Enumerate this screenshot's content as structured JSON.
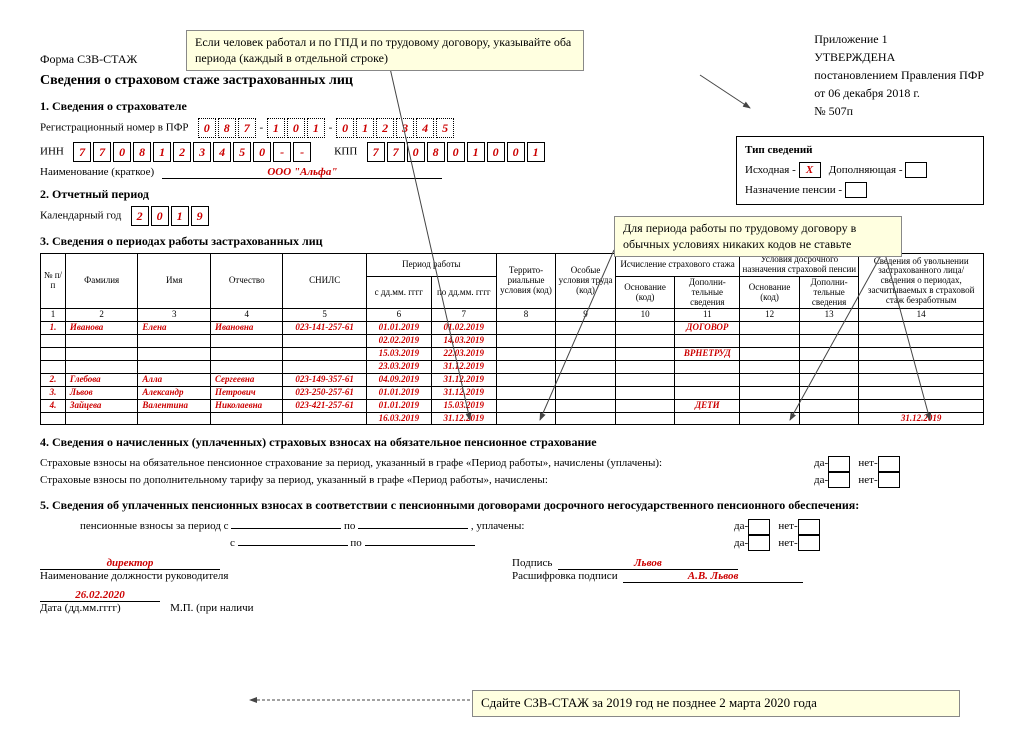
{
  "form_code": "Форма СЗВ-СТАЖ",
  "title": "Сведения о страховом стаже застрахованных лиц",
  "appendix": {
    "l1": "Приложение 1",
    "l2": "УТВЕРЖДЕНА",
    "l3": "постановлением Правления ПФР",
    "l4": "от   06 декабря 2018 г.",
    "l5": "№   507п"
  },
  "callout1": "Если человек работал и по ГПД и по трудовому договору, указывайте оба периода (каждый в отдельной строке)",
  "callout2": "Для периода работы по трудовому договору в обычных условиях никаких кодов не ставьте",
  "callout3": "Сдайте СЗВ-СТАЖ за 2019 год не позднее 2 марта 2020 года",
  "s1": {
    "h": "1. Сведения о страхователе",
    "reg_lbl": "Регистрационный номер в ПФР",
    "reg_g1": [
      "0",
      "8",
      "7"
    ],
    "reg_g2": [
      "1",
      "0",
      "1"
    ],
    "reg_g3": [
      "0",
      "1",
      "2",
      "3",
      "4",
      "5"
    ],
    "inn_lbl": "ИНН",
    "inn": [
      "7",
      "7",
      "0",
      "8",
      "1",
      "2",
      "3",
      "4",
      "5",
      "0",
      "-",
      "-"
    ],
    "kpp_lbl": "КПП",
    "kpp": [
      "7",
      "7",
      "0",
      "8",
      "0",
      "1",
      "0",
      "0",
      "1"
    ],
    "name_lbl": "Наименование (краткое)",
    "name_val": "ООО \"Альфа\""
  },
  "tinfo": {
    "h": "Тип сведений",
    "l1a": "Исходная -",
    "l1b": "X",
    "l1c": "Дополняющая -",
    "l2": "Назначение пенсии -"
  },
  "s2": {
    "h": "2. Отчетный период",
    "lbl": "Календарный год",
    "year": [
      "2",
      "0",
      "1",
      "9"
    ]
  },
  "s3": {
    "h": "3. Сведения о периодах работы застрахованных лиц",
    "cols": {
      "c1": "№ п/п",
      "c2": "Фамилия",
      "c3": "Имя",
      "c4": "Отчество",
      "c5": "СНИЛС",
      "c6": "Период работы",
      "c6a": "с дд.мм. гггг",
      "c6b": "по дд.мм. гггг",
      "c8": "Террито-риальные условия (код)",
      "c9": "Особые условия труда (код)",
      "c10": "Исчисление страхового стажа",
      "c10a": "Основание (код)",
      "c10b": "Дополни-тельные сведения",
      "c12": "Условия досрочного назначения страховой пенсии",
      "c12a": "Основание (код)",
      "c12b": "Дополни-тельные сведения",
      "c14": "Сведения об увольнении застрахованного лица/сведения о периодах, засчитываемых в страховой стаж безработным"
    },
    "nums": [
      "1",
      "2",
      "3",
      "4",
      "5",
      "6",
      "7",
      "8",
      "9",
      "10",
      "11",
      "12",
      "13",
      "14"
    ],
    "rows": [
      {
        "n": "1.",
        "fam": "Иванова",
        "im": "Елена",
        "ot": "Ивановна",
        "snils": "023-141-257-61",
        "from": "01.01.2019",
        "to": "01.02.2019",
        "c11": "ДОГОВОР"
      },
      {
        "from": "02.02.2019",
        "to": "14.03.2019"
      },
      {
        "from": "15.03.2019",
        "to": "22.03.2019",
        "c11": "ВРНЕТРУД"
      },
      {
        "from": "23.03.2019",
        "to": "31.12.2019"
      },
      {
        "n": "2.",
        "fam": "Глебова",
        "im": "Алла",
        "ot": "Сергеевна",
        "snils": "023-149-357-61",
        "from": "04.09.2019",
        "to": "31.12.2019"
      },
      {
        "n": "3.",
        "fam": "Львов",
        "im": "Александр",
        "ot": "Петрович",
        "snils": "023-250-257-61",
        "from": "01.01.2019",
        "to": "31.12.2019"
      },
      {
        "n": "4.",
        "fam": "Зайцева",
        "im": "Валентина",
        "ot": "Николаевна",
        "snils": "023-421-257-61",
        "from": "01.01.2019",
        "to": "15.03.2019",
        "c11": "ДЕТИ"
      },
      {
        "from": "16.03.2019",
        "to": "31.12.2019",
        "c14": "31.12.2019"
      }
    ]
  },
  "s4": {
    "h": "4. Сведения о начисленных (уплаченных) страховых взносах на обязательное пенсионное страхование",
    "l1": "Страховые взносы на обязательное пенсионное страхование за период, указанный в графе «Период работы», начислены (уплачены):",
    "l2": "Страховые взносы по дополнительному тарифу за период, указанный в графе «Период работы», начислены:",
    "da": "да-",
    "net": "нет-"
  },
  "s5": {
    "h": "5. Сведения об уплаченных пенсионных взносах в соответствии с пенсионными договорами досрочного негосударственного пенсионного обеспечения:",
    "l1a": "пенсионные взносы за период с",
    "l1b": "по",
    "l1c": ", уплачены:",
    "l2a": "с",
    "l2b": "по",
    "da": "да-",
    "net": "нет-"
  },
  "sig": {
    "pos": "директор",
    "pos_lbl": "Наименование должности руководителя",
    "sign_lbl": "Подпись",
    "sign_val": "Львов",
    "dec_lbl": "Расшифровка подписи",
    "dec_val": "А.В. Львов",
    "date": "26.02.2020",
    "date_lbl": "Дата (дд.мм.гггг)",
    "mp": "М.П. (при наличи"
  }
}
